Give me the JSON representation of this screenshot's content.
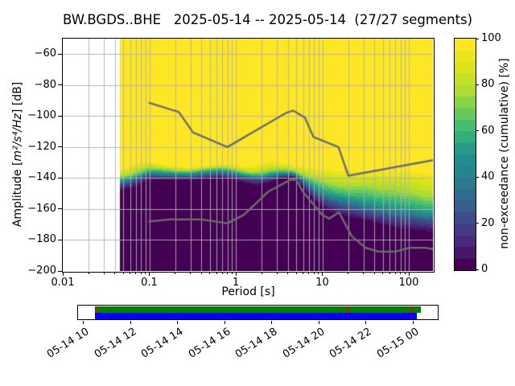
{
  "title": "BW.BGDS..BHE   2025-05-14 -- 2025-05-14  (27/27 segments)",
  "axes": {
    "xlabel": "Period [s]",
    "ylabel_prefix": "Amplitude [",
    "ylabel_math": "m²/s⁴/Hz",
    "ylabel_suffix": "] [dB]",
    "x_scale": "log",
    "xlim": [
      0.01,
      190
    ],
    "ylim": [
      -200,
      -50
    ],
    "x_tick_values": [
      0.01,
      0.1,
      1,
      10,
      100
    ],
    "x_tick_labels": [
      "0.01",
      "0.1",
      "1",
      "10",
      "100"
    ],
    "y_tick_values": [
      -60,
      -80,
      -100,
      -120,
      -140,
      -160,
      -180,
      -200
    ],
    "y_tick_labels": [
      "−60",
      "−80",
      "−100",
      "−120",
      "−140",
      "−160",
      "−180",
      "−200"
    ],
    "grid_color": "#b0b0b0"
  },
  "chart_data": {
    "type": "heatmap",
    "title": "BW.BGDS..BHE   2025-05-14 -- 2025-05-14  (27/27 segments)",
    "xlabel": "Period [s]",
    "ylabel": "Amplitude [m²/s⁴/Hz] [dB]",
    "x_scale": "log",
    "xlim": [
      0.01,
      190
    ],
    "ylim": [
      -200,
      -50
    ],
    "grid": true,
    "data_period_range": [
      0.046,
      190
    ],
    "period_bin_octave_fraction": 8,
    "db_bin_step": 1,
    "percentile_levels": [
      2,
      25,
      50,
      75,
      98
    ],
    "distribution": [
      {
        "period": 0.046,
        "db_levels": [
          -148,
          -144,
          -142,
          -139,
          -134.5
        ]
      },
      {
        "period": 0.052,
        "db_levels": [
          -147.5,
          -143.5,
          -141.5,
          -138.5,
          -133
        ]
      },
      {
        "period": 0.06,
        "db_levels": [
          -147,
          -143,
          -141,
          -138,
          -131.5
        ]
      },
      {
        "period": 0.08,
        "db_levels": [
          -144,
          -140,
          -138,
          -135,
          -129
        ]
      },
      {
        "period": 0.1,
        "db_levels": [
          -141.5,
          -138,
          -136,
          -133.5,
          -129
        ]
      },
      {
        "period": 0.14,
        "db_levels": [
          -142,
          -138.5,
          -136.5,
          -134,
          -131
        ]
      },
      {
        "period": 0.2,
        "db_levels": [
          -142,
          -139,
          -137,
          -135,
          -132
        ]
      },
      {
        "period": 0.3,
        "db_levels": [
          -142,
          -139,
          -137,
          -135,
          -133
        ]
      },
      {
        "period": 0.45,
        "db_levels": [
          -141,
          -138,
          -136,
          -134,
          -132
        ]
      },
      {
        "period": 0.65,
        "db_levels": [
          -140,
          -137,
          -135,
          -133,
          -131
        ]
      },
      {
        "period": 0.9,
        "db_levels": [
          -141,
          -138,
          -136,
          -134,
          -131
        ]
      },
      {
        "period": 1.3,
        "db_levels": [
          -144,
          -140,
          -138,
          -136,
          -132
        ]
      },
      {
        "period": 1.8,
        "db_levels": [
          -145,
          -141,
          -139,
          -136.5,
          -131
        ]
      },
      {
        "period": 2.6,
        "db_levels": [
          -143,
          -139.5,
          -137.5,
          -134.5,
          -129
        ]
      },
      {
        "period": 3.5,
        "db_levels": [
          -140.5,
          -138,
          -136.5,
          -134.5,
          -129.5
        ]
      },
      {
        "period": 4.6,
        "db_levels": [
          -139.5,
          -137.5,
          -136.5,
          -135,
          -132
        ]
      },
      {
        "period": 6.0,
        "db_levels": [
          -147,
          -143,
          -141,
          -138,
          -132
        ]
      },
      {
        "period": 8.0,
        "db_levels": [
          -155,
          -149,
          -146,
          -141,
          -133
        ]
      },
      {
        "period": 11,
        "db_levels": [
          -161,
          -154,
          -150,
          -143,
          -133.5
        ]
      },
      {
        "period": 15,
        "db_levels": [
          -164,
          -157,
          -152,
          -145,
          -134
        ]
      },
      {
        "period": 21,
        "db_levels": [
          -166,
          -159,
          -154,
          -146,
          -134
        ]
      },
      {
        "period": 30,
        "db_levels": [
          -168,
          -161,
          -156,
          -145.5,
          -134
        ]
      },
      {
        "period": 45,
        "db_levels": [
          -170,
          -163,
          -158,
          -147,
          -133.5
        ]
      },
      {
        "period": 70,
        "db_levels": [
          -173,
          -165,
          -159.5,
          -148,
          -133
        ]
      },
      {
        "period": 110,
        "db_levels": [
          -174,
          -166,
          -161,
          -150,
          -134
        ]
      },
      {
        "period": 150,
        "db_levels": [
          -174.5,
          -167,
          -162,
          -152,
          -135
        ]
      },
      {
        "period": 190,
        "db_levels": [
          -176,
          -168,
          -163,
          -153,
          -136
        ]
      }
    ],
    "noise_models": {
      "color": "#6e6e6e",
      "nhnm": {
        "periods": [
          0.1,
          0.22,
          0.32,
          0.8,
          3.8,
          4.6,
          6.3,
          7.9,
          15.4,
          20,
          190
        ],
        "db": [
          -91.5,
          -97.4,
          -110.5,
          -120,
          -98,
          -96.5,
          -101,
          -113.5,
          -120,
          -138.5,
          -128.5
        ]
      },
      "nlnm": {
        "periods": [
          0.1,
          0.17,
          0.4,
          0.8,
          1.24,
          2.4,
          4.3,
          5,
          6,
          10,
          12,
          15.6,
          21.9,
          31.6,
          45,
          70,
          101,
          154,
          190
        ],
        "db": [
          -168,
          -166.7,
          -166.7,
          -169.2,
          -163.7,
          -148.6,
          -141.1,
          -141.1,
          -149,
          -163.8,
          -166.2,
          -162.1,
          -177.5,
          -185,
          -187.5,
          -187.5,
          -185,
          -185,
          -185.9
        ]
      }
    },
    "colorbar": {
      "label": "non-exceedance (cumulative) [%]",
      "tick_values": [
        0,
        20,
        40,
        60,
        80,
        100
      ],
      "tick_labels": [
        "0",
        "20",
        "40",
        "60",
        "80",
        "100"
      ],
      "steps": 20,
      "viridis_stops": [
        "#440154",
        "#482878",
        "#3e4a89",
        "#31688e",
        "#26828e",
        "#21918c",
        "#35b779",
        "#6ece58",
        "#b5de2b",
        "#dde318",
        "#fde725"
      ]
    }
  },
  "timeline": {
    "tick_labels": [
      "05-14 10",
      "05-14 12",
      "05-14 14",
      "05-14 16",
      "05-14 18",
      "05-14 20",
      "05-14 22",
      "05-15 00"
    ],
    "coverage_color": "#008000",
    "selection_color": "#0000ff",
    "gap_color": "#ee0000",
    "bars": {
      "green": {
        "start_frac": 0.047,
        "end_frac": 0.952
      },
      "blue": {
        "start_frac": 0.047,
        "end_frac": 0.942
      }
    },
    "gap_fracs": [
      0.048,
      0.748,
      0.924
    ]
  }
}
